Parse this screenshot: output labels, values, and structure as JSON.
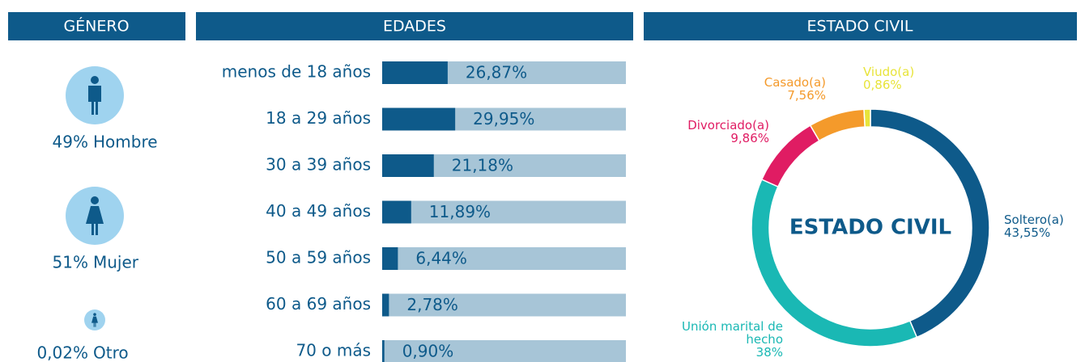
{
  "chart_data": [
    {
      "type": "pictogram",
      "title": "GÉNERO",
      "categories": [
        "Hombre",
        "Mujer",
        "Otro"
      ],
      "values": [
        49,
        51,
        0.02
      ],
      "value_labels": [
        "49%",
        "51%",
        "0,02%"
      ],
      "color": "#0e5a8a",
      "icon_color": "#9fd3ef"
    },
    {
      "type": "bar",
      "title": "EDADES",
      "categories": [
        "menos de 18 años",
        "18 a 29 años",
        "30 a 39 años",
        "40 a 49 años",
        "50 a 59 años",
        "60 a 69 años",
        "70 o más"
      ],
      "values": [
        26.87,
        29.95,
        21.18,
        11.89,
        6.44,
        2.78,
        0.9
      ],
      "value_labels": [
        "26,87%",
        "29,95%",
        "21,18%",
        "11,89%",
        "6,44%",
        "2,78%",
        "0,90%"
      ],
      "xlim": [
        0,
        100
      ],
      "color": "#0e5a8a",
      "track_color": "#a7c5d7"
    },
    {
      "type": "donut",
      "title": "ESTADO CIVIL",
      "center_label": "ESTADO CIVIL",
      "categories": [
        "Soltero(a)",
        "Unión marital de hecho",
        "Divorciado(a)",
        "Casado(a)",
        "Viudo(a)"
      ],
      "values": [
        43.55,
        38,
        9.86,
        7.56,
        0.86
      ],
      "value_labels": [
        "43,55%",
        "38%",
        "9,86%",
        "7,56%",
        "0,86%"
      ],
      "colors": [
        "#0e5a8a",
        "#1ab8b4",
        "#e01c63",
        "#f49a2b",
        "#e8e43a"
      ]
    }
  ]
}
